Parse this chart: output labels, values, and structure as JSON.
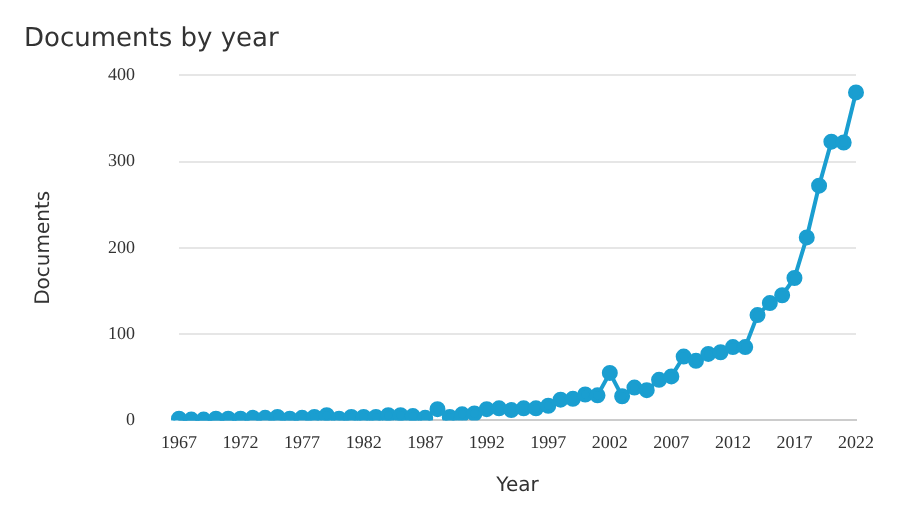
{
  "chart_data": {
    "type": "line",
    "title": "Documents by year",
    "xlabel": "Year",
    "ylabel": "Documents",
    "categories": [
      "1967",
      null,
      null,
      null,
      null,
      "1972",
      null,
      null,
      null,
      null,
      "1977",
      null,
      null,
      null,
      null,
      "1982",
      null,
      null,
      null,
      null,
      "1987",
      null,
      null,
      null,
      null,
      "1992",
      null,
      null,
      null,
      null,
      "1997",
      null,
      null,
      null,
      null,
      "2002",
      null,
      null,
      null,
      null,
      "2007",
      null,
      null,
      null,
      null,
      "2012",
      null,
      null,
      null,
      null,
      "2017",
      null,
      null,
      null,
      null,
      "2022"
    ],
    "series": [
      {
        "color": "#1a9ed0",
        "values": [
          2,
          1,
          1,
          2,
          2,
          2,
          3,
          3,
          4,
          2,
          3,
          4,
          6,
          2,
          4,
          4,
          4,
          6,
          6,
          5,
          3,
          13,
          4,
          7,
          8,
          13,
          14,
          12,
          14,
          14,
          17,
          24,
          25,
          30,
          29,
          55,
          28,
          38,
          35,
          47,
          51,
          74,
          69,
          77,
          79,
          85,
          85,
          122,
          136,
          145,
          165,
          212,
          272,
          323,
          322,
          380
        ]
      }
    ],
    "ylim": [
      0,
      400
    ],
    "yticks": [
      0,
      100,
      200,
      300,
      400
    ],
    "grid": "y",
    "legend": false,
    "marker": "circle",
    "line_style": "solid"
  }
}
